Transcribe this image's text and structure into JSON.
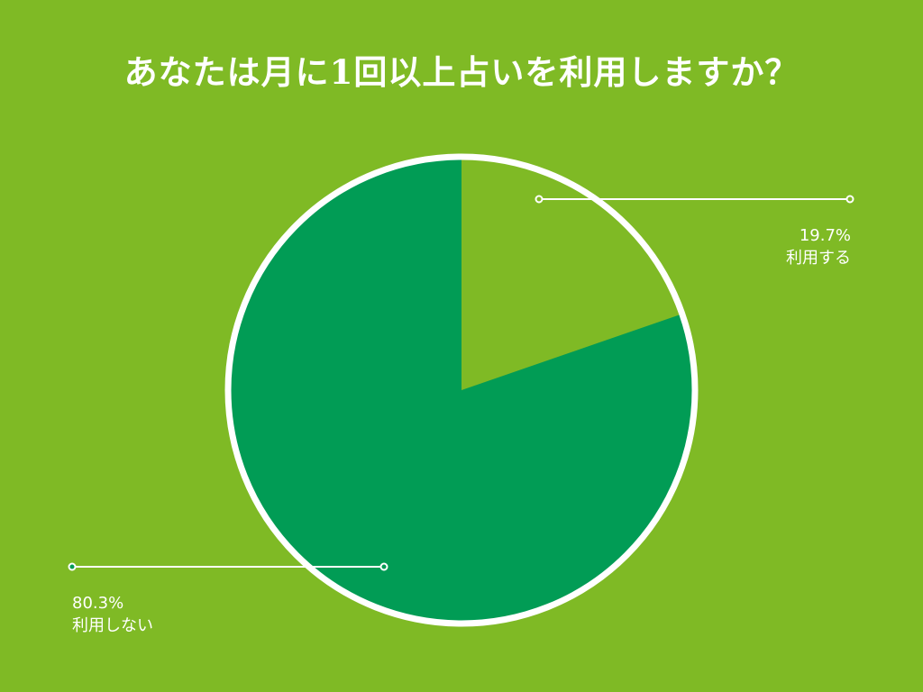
{
  "chart_data": {
    "type": "pie",
    "title": "あなたは月に1回以上占いを利用しますか？",
    "slices": [
      {
        "label": "利用する",
        "value": 19.7,
        "value_text": "19.7%",
        "color": "#7fba25"
      },
      {
        "label": "利用しない",
        "value": 80.3,
        "value_text": "80.3%",
        "color": "#019c55"
      }
    ],
    "start_angle": "12 o'clock",
    "direction": "clockwise",
    "outline_color": "#ffffff"
  },
  "colors": {
    "background": "#7fba25",
    "text": "#ffffff"
  }
}
